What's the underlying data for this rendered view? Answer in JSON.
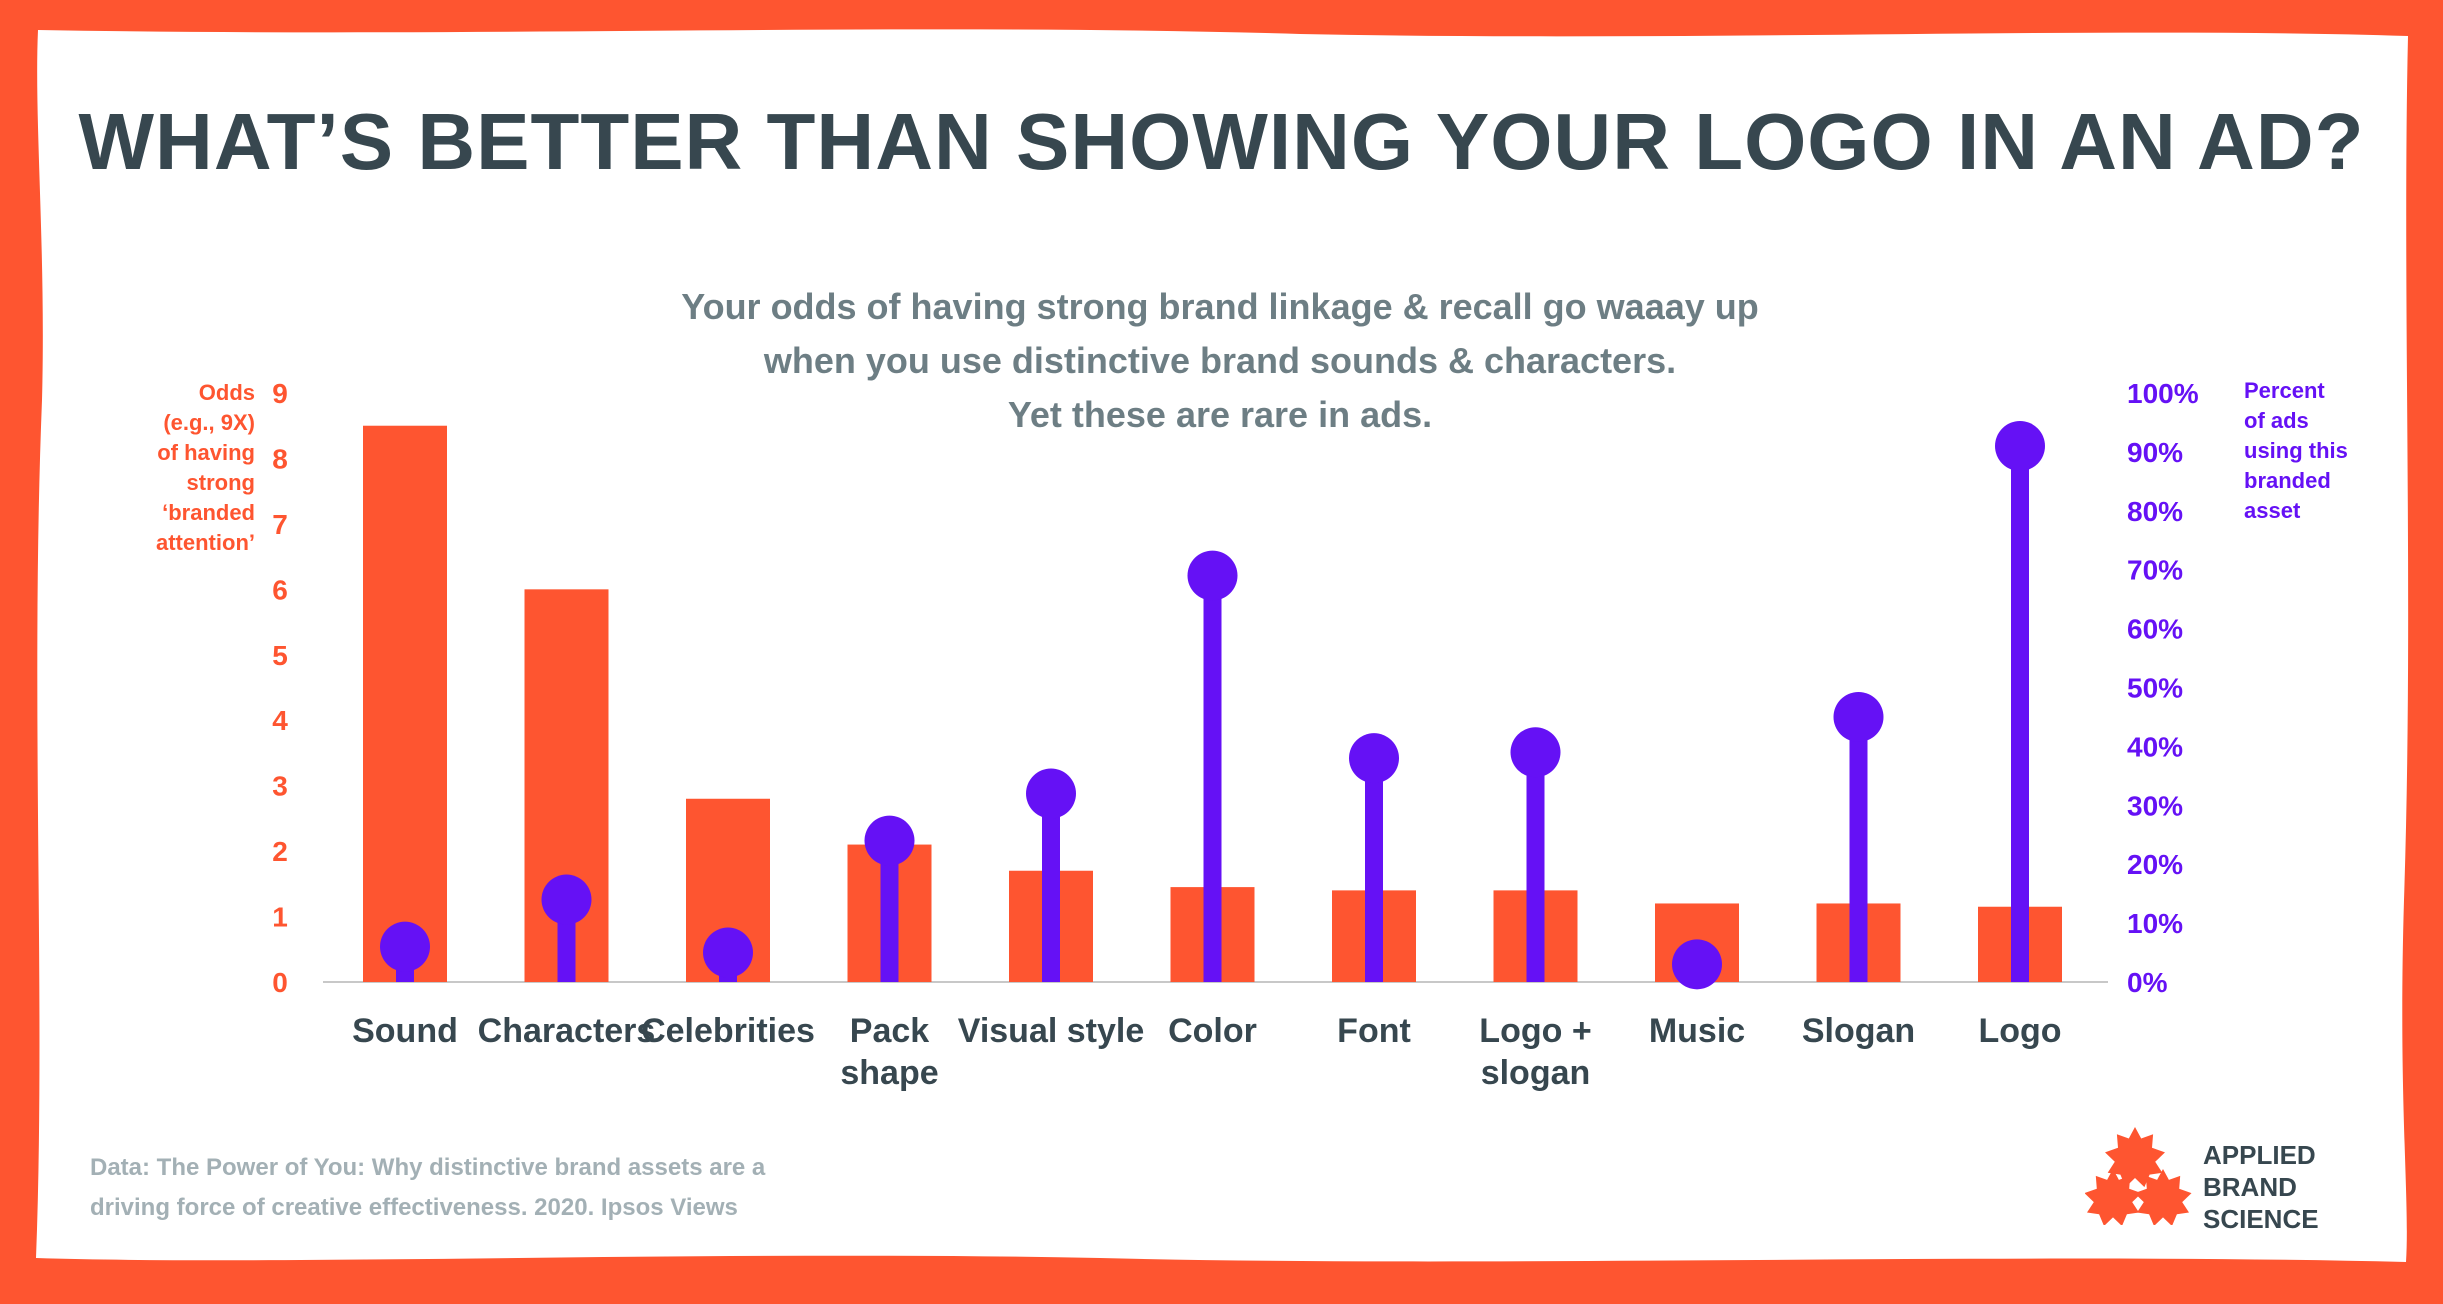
{
  "title": "WHAT’S BETTER THAN SHOWING YOUR LOGO IN AN AD?",
  "subtitle_lines": [
    "Your odds of having strong brand linkage & recall go waaay up",
    "when you use distinctive brand sounds & characters.",
    "Yet these are rare in ads."
  ],
  "left_axis_label_lines": [
    "Odds",
    "(e.g., 9X)",
    "of having",
    "strong",
    "‘branded",
    "attention’"
  ],
  "right_axis_label_lines": [
    "Percent",
    "of ads",
    "using this",
    "branded",
    "asset"
  ],
  "source_lines": [
    "Data: The Power of You: Why distinctive brand assets are a",
    "driving force of creative effectiveness. 2020. Ipsos Views"
  ],
  "logo_lines": [
    "APPLIED",
    "BRAND",
    "SCIENCE"
  ],
  "colors": {
    "border": "#fe5530",
    "bar": "#fe5530",
    "lollipop": "#6511f5",
    "title": "#37474f",
    "subtitle": "#6d7e84",
    "source": "#a3b0b5",
    "axis_line": "#c8c8c8"
  },
  "chart_data": {
    "type": "bar",
    "categories": [
      [
        "Sound"
      ],
      [
        "Characters"
      ],
      [
        "Celebrities"
      ],
      [
        "Pack",
        "shape"
      ],
      [
        "Visual style"
      ],
      [
        "Color"
      ],
      [
        "Font"
      ],
      [
        "Logo +",
        "slogan"
      ],
      [
        "Music"
      ],
      [
        "Slogan"
      ],
      [
        "Logo"
      ]
    ],
    "series": [
      {
        "axis": "left",
        "style": "bar",
        "values": [
          8.5,
          6.0,
          2.8,
          2.1,
          1.7,
          1.45,
          1.4,
          1.4,
          1.2,
          1.2,
          1.15
        ]
      },
      {
        "axis": "right",
        "style": "lollipop",
        "values": [
          6,
          14,
          5,
          24,
          32,
          69,
          38,
          39,
          3,
          45,
          91
        ]
      }
    ],
    "y_left": {
      "min": 0,
      "max": 9,
      "ticks": [
        "0",
        "1",
        "2",
        "3",
        "4",
        "5",
        "6",
        "7",
        "8",
        "9"
      ]
    },
    "y_right": {
      "min": 0,
      "max": 100,
      "ticks": [
        "0%",
        "10%",
        "20%",
        "30%",
        "40%",
        "50%",
        "60%",
        "70%",
        "80%",
        "90%",
        "100%"
      ]
    },
    "grid": false,
    "legend": "none"
  }
}
